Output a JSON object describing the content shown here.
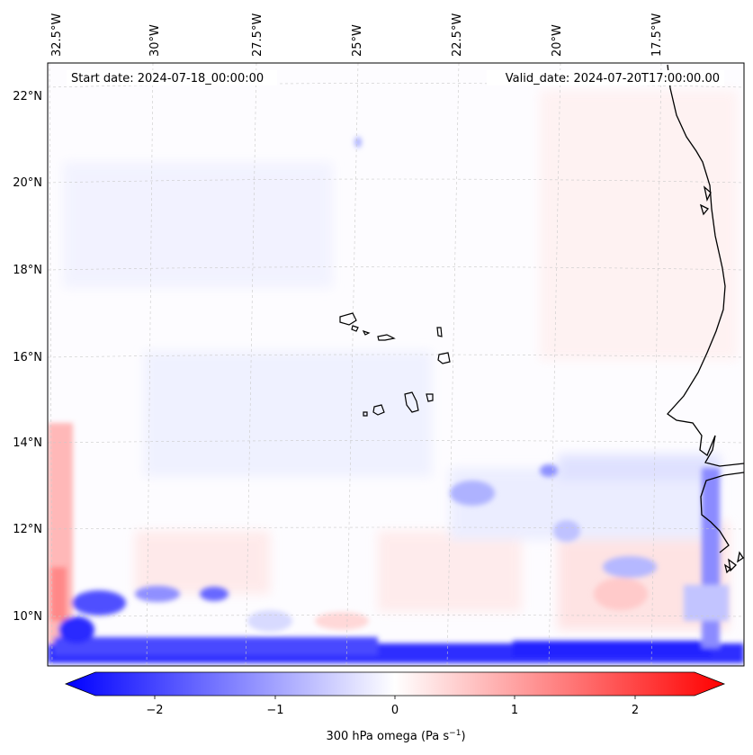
{
  "header": {
    "start_date": "Start date: 2024-07-18_00:00:00",
    "valid_date": "Valid_date: 2024-07-20T17:00:00.00"
  },
  "map": {
    "lon_labels": [
      "32.5°W",
      "30°W",
      "27.5°W",
      "25°W",
      "22.5°W",
      "20°W",
      "17.5°W"
    ],
    "lat_labels": [
      "22°N",
      "20°N",
      "18°N",
      "16°N",
      "14°N",
      "12°N",
      "10°N"
    ],
    "field": "300 hPa omega",
    "colormap": "bwr",
    "colors": {
      "min": "#0000ff",
      "mid": "#ffffff",
      "max": "#ff0000",
      "coast": "#000000"
    }
  },
  "colorbar": {
    "ticks": [
      "−2",
      "−1",
      "0",
      "1",
      "2"
    ],
    "label": "300 hPa omega (Pa s",
    "label_sup": "−1",
    "label_close": ")",
    "range": [
      -2.6,
      2.6
    ],
    "extend": "both"
  }
}
